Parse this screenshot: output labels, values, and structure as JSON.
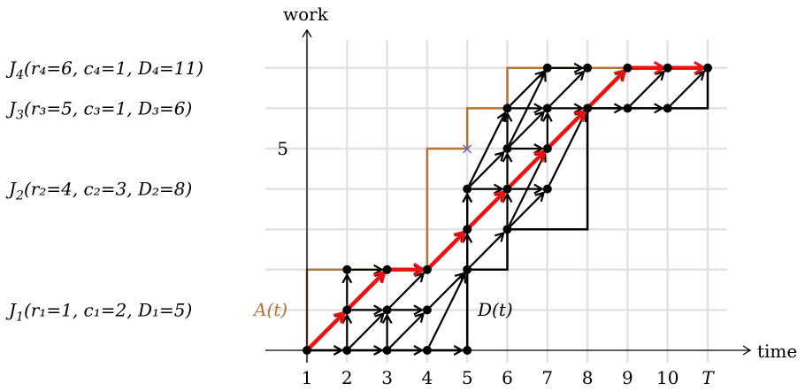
{
  "axes": {
    "x_label": "time",
    "y_label": "work",
    "x_ticks": [
      "1",
      "2",
      "3",
      "4",
      "5",
      "6",
      "7",
      "8",
      "9",
      "10",
      "T"
    ],
    "x_tick_values": [
      1,
      2,
      3,
      4,
      5,
      6,
      7,
      8,
      9,
      10,
      11
    ],
    "y_ticks": [
      {
        "value": 5,
        "label": "5"
      }
    ],
    "x_range": [
      1,
      11
    ],
    "y_range": [
      0,
      7
    ]
  },
  "jobs": [
    {
      "label": "J",
      "sub": "1",
      "params": "(r₁=1, c₁=2, D₁=5)",
      "level": 1
    },
    {
      "label": "J",
      "sub": "2",
      "params": "(r₂=4, c₂=3, D₂=8)",
      "level": 4
    },
    {
      "label": "J",
      "sub": "3",
      "params": "(r₃=5, c₃=1, D₃=6)",
      "level": 6
    },
    {
      "label": "J",
      "sub": "4",
      "params": "(r₄=6, c₄=1, D₄=11)",
      "level": 7
    }
  ],
  "curves": {
    "arrival": {
      "label": "A(t)",
      "color": "#b87333",
      "points": [
        [
          1,
          0
        ],
        [
          1,
          2
        ],
        [
          4,
          2
        ],
        [
          4,
          5
        ],
        [
          5,
          5
        ],
        [
          5,
          6
        ],
        [
          6,
          6
        ],
        [
          6,
          7
        ],
        [
          11,
          7
        ]
      ]
    },
    "deadline": {
      "label": "D(t)",
      "color": "#000000",
      "points": [
        [
          1,
          0
        ],
        [
          5,
          0
        ],
        [
          5,
          2
        ],
        [
          6,
          2
        ],
        [
          6,
          3
        ],
        [
          8,
          3
        ],
        [
          8,
          6
        ],
        [
          11,
          6
        ],
        [
          11,
          7
        ]
      ]
    }
  },
  "marker": {
    "x": 5,
    "y": 5,
    "symbol": "×",
    "color": "#5b5bd6"
  },
  "graph": {
    "nodes": [
      [
        1,
        0
      ],
      [
        2,
        0
      ],
      [
        3,
        0
      ],
      [
        4,
        0
      ],
      [
        5,
        0
      ],
      [
        2,
        1
      ],
      [
        3,
        1
      ],
      [
        4,
        1
      ],
      [
        2,
        2
      ],
      [
        3,
        2
      ],
      [
        4,
        2
      ],
      [
        5,
        2
      ],
      [
        5,
        3
      ],
      [
        6,
        3
      ],
      [
        5,
        4
      ],
      [
        6,
        4
      ],
      [
        7,
        4
      ],
      [
        6,
        5
      ],
      [
        7,
        5
      ],
      [
        6,
        6
      ],
      [
        7,
        6
      ],
      [
        8,
        6
      ],
      [
        9,
        6
      ],
      [
        10,
        6
      ],
      [
        7,
        7
      ],
      [
        8,
        7
      ],
      [
        9,
        7
      ],
      [
        10,
        7
      ],
      [
        11,
        7
      ]
    ],
    "edges": [
      [
        [
          1,
          0
        ],
        [
          2,
          0
        ]
      ],
      [
        [
          2,
          0
        ],
        [
          3,
          0
        ]
      ],
      [
        [
          3,
          0
        ],
        [
          4,
          0
        ]
      ],
      [
        [
          4,
          0
        ],
        [
          5,
          0
        ]
      ],
      [
        [
          1,
          0
        ],
        [
          2,
          1
        ]
      ],
      [
        [
          2,
          0
        ],
        [
          3,
          1
        ]
      ],
      [
        [
          3,
          0
        ],
        [
          4,
          1
        ]
      ],
      [
        [
          4,
          0
        ],
        [
          5,
          2
        ]
      ],
      [
        [
          2,
          1
        ],
        [
          3,
          1
        ]
      ],
      [
        [
          3,
          1
        ],
        [
          4,
          1
        ]
      ],
      [
        [
          4,
          1
        ],
        [
          5,
          2
        ]
      ],
      [
        [
          2,
          1
        ],
        [
          3,
          2
        ]
      ],
      [
        [
          3,
          1
        ],
        [
          4,
          2
        ]
      ],
      [
        [
          2,
          0
        ],
        [
          2,
          1
        ]
      ],
      [
        [
          3,
          0
        ],
        [
          3,
          1
        ]
      ],
      [
        [
          3,
          2
        ],
        [
          4,
          2
        ]
      ],
      [
        [
          2,
          2
        ],
        [
          3,
          2
        ]
      ],
      [
        [
          2,
          1
        ],
        [
          2,
          2
        ]
      ],
      [
        [
          4,
          2
        ],
        [
          5,
          3
        ]
      ],
      [
        [
          5,
          2
        ],
        [
          5,
          3
        ]
      ],
      [
        [
          5,
          2
        ],
        [
          6,
          3
        ]
      ],
      [
        [
          5,
          2
        ],
        [
          5,
          4
        ]
      ],
      [
        [
          5,
          3
        ],
        [
          6,
          4
        ]
      ],
      [
        [
          5,
          3
        ],
        [
          5,
          4
        ]
      ],
      [
        [
          6,
          3
        ],
        [
          6,
          4
        ]
      ],
      [
        [
          6,
          3
        ],
        [
          7,
          4
        ]
      ],
      [
        [
          6,
          3
        ],
        [
          7,
          5
        ]
      ],
      [
        [
          5,
          4
        ],
        [
          6,
          4
        ]
      ],
      [
        [
          6,
          4
        ],
        [
          7,
          4
        ]
      ],
      [
        [
          5,
          4
        ],
        [
          6,
          5
        ]
      ],
      [
        [
          6,
          4
        ],
        [
          7,
          5
        ]
      ],
      [
        [
          6,
          4
        ],
        [
          6,
          5
        ]
      ],
      [
        [
          5,
          4
        ],
        [
          6,
          6
        ]
      ],
      [
        [
          6,
          5
        ],
        [
          7,
          5
        ]
      ],
      [
        [
          6,
          5
        ],
        [
          7,
          6
        ]
      ],
      [
        [
          7,
          4
        ],
        [
          8,
          6
        ]
      ],
      [
        [
          7,
          5
        ],
        [
          8,
          6
        ]
      ],
      [
        [
          6,
          5
        ],
        [
          6,
          6
        ]
      ],
      [
        [
          6,
          6
        ],
        [
          7,
          6
        ]
      ],
      [
        [
          7,
          6
        ],
        [
          8,
          6
        ]
      ],
      [
        [
          8,
          6
        ],
        [
          9,
          6
        ]
      ],
      [
        [
          9,
          6
        ],
        [
          10,
          6
        ]
      ],
      [
        [
          6,
          6
        ],
        [
          7,
          7
        ]
      ],
      [
        [
          7,
          6
        ],
        [
          8,
          7
        ]
      ],
      [
        [
          8,
          6
        ],
        [
          9,
          7
        ]
      ],
      [
        [
          9,
          6
        ],
        [
          10,
          7
        ]
      ],
      [
        [
          10,
          6
        ],
        [
          11,
          7
        ]
      ],
      [
        [
          7,
          7
        ],
        [
          8,
          7
        ]
      ],
      [
        [
          7,
          5
        ],
        [
          7,
          6
        ]
      ],
      [
        [
          6,
          5
        ],
        [
          7,
          7
        ]
      ]
    ],
    "highlight_path": [
      [
        1,
        0
      ],
      [
        2,
        1
      ],
      [
        3,
        2
      ],
      [
        4,
        2
      ],
      [
        5,
        3
      ],
      [
        6,
        4
      ],
      [
        7,
        5
      ],
      [
        8,
        6
      ],
      [
        9,
        7
      ],
      [
        10,
        7
      ],
      [
        11,
        7
      ]
    ],
    "highlight_color": "#ee1111"
  }
}
